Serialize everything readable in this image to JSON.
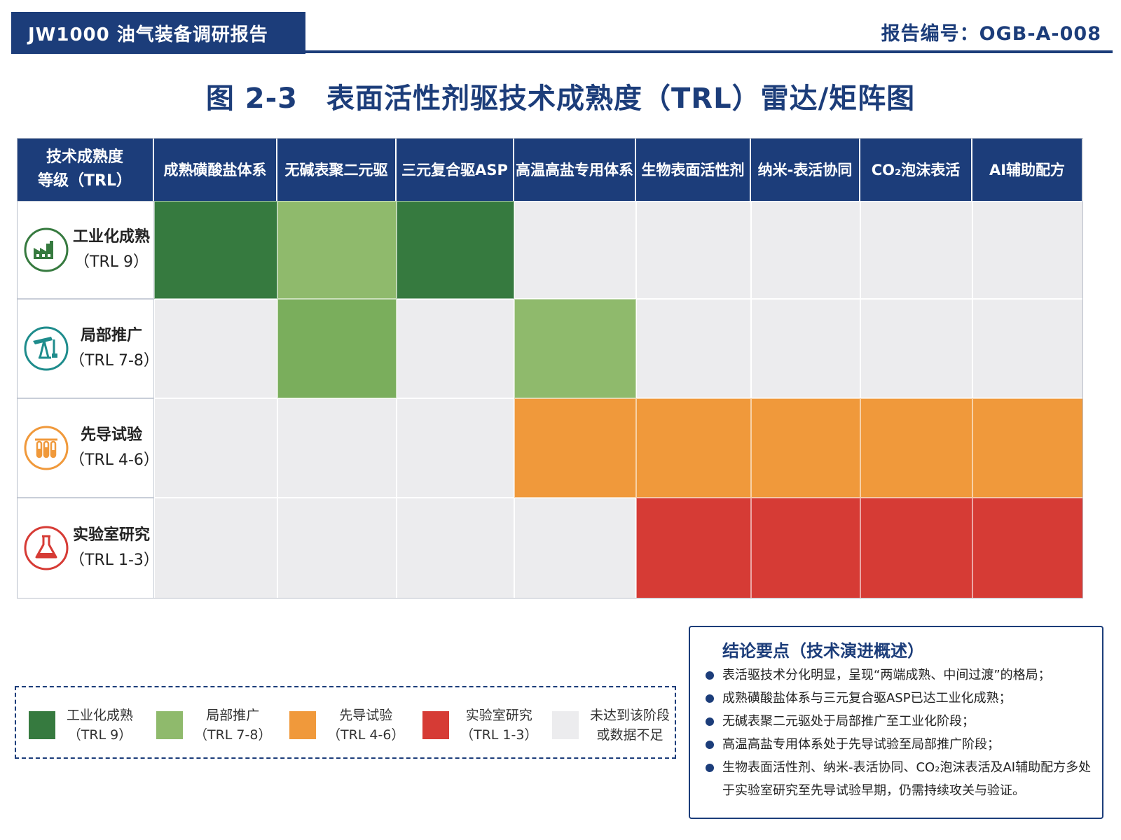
{
  "header": {
    "report_title": "JW1000 油气装备调研报告",
    "report_no": "报告编号：OGB-A-008"
  },
  "colors": {
    "navy": "#1c3d7a",
    "trl9": "#367a3f",
    "trl78": "#8fba6c",
    "trl78_alt": "#7aae5c",
    "trl46": "#f0993b",
    "trl13": "#d63b35",
    "none": "#ececee"
  },
  "chart_data": {
    "type": "table",
    "title": "图 2-3　表面活性剂驱技术成熟度（TRL）雷达/矩阵图",
    "corner_label": [
      "技术成熟度",
      "等级（TRL）"
    ],
    "columns": [
      "成熟磺酸盐体系",
      "无碱表聚二元驱",
      "三元复合驱ASP",
      "高温高盐专用体系",
      "生物表面活性剂",
      "纳米-表活协同",
      "CO₂泡沫表活",
      "AI辅助配方"
    ],
    "rows": [
      {
        "name": "工业化成熟",
        "sub": "（TRL 9）",
        "icon": "factory-icon",
        "color": "#367a3f"
      },
      {
        "name": "局部推广",
        "sub": "（TRL 7-8）",
        "icon": "pumpjack-icon",
        "color": "#1e8c8c"
      },
      {
        "name": "先导试验",
        "sub": "（TRL 4-6）",
        "icon": "test-tubes-icon",
        "color": "#f0993b"
      },
      {
        "name": "实验室研究",
        "sub": "（TRL 1-3）",
        "icon": "flask-icon",
        "color": "#d63b35"
      }
    ],
    "matrix": [
      [
        "trl9",
        "trl78",
        "trl9",
        "none",
        "none",
        "none",
        "none",
        "none"
      ],
      [
        "none",
        "trl78_alt",
        "none",
        "trl78",
        "none",
        "none",
        "none",
        "none"
      ],
      [
        "none",
        "none",
        "none",
        "trl46",
        "trl46",
        "trl46",
        "trl46",
        "trl46"
      ],
      [
        "none",
        "none",
        "none",
        "none",
        "trl13",
        "trl13",
        "trl13",
        "trl13"
      ]
    ]
  },
  "legend": [
    {
      "key": "trl9",
      "label": "工业化成熟",
      "sub": "（TRL 9）"
    },
    {
      "key": "trl78",
      "label": "局部推广",
      "sub": "（TRL 7-8）"
    },
    {
      "key": "trl46",
      "label": "先导试验",
      "sub": "（TRL 4-6）"
    },
    {
      "key": "trl13",
      "label": "实验室研究",
      "sub": "（TRL 1-3）"
    },
    {
      "key": "none",
      "label": "未达到该阶段",
      "sub": "或数据不足"
    }
  ],
  "key_points": {
    "title": "结论要点（技术演进概述）",
    "items": [
      "表活驱技术分化明显，呈现“两端成熟、中间过渡”的格局；",
      "成熟磺酸盐体系与三元复合驱ASP已达工业化成熟；",
      "无碱表聚二元驱处于局部推广至工业化阶段；",
      "高温高盐专用体系处于先导试验至局部推广阶段；",
      "生物表面活性剂、纳米-表活协同、CO₂泡沫表活及AI辅助配方多处于实验室研究至先导试验早期，仍需持续攻关与验证。"
    ]
  }
}
